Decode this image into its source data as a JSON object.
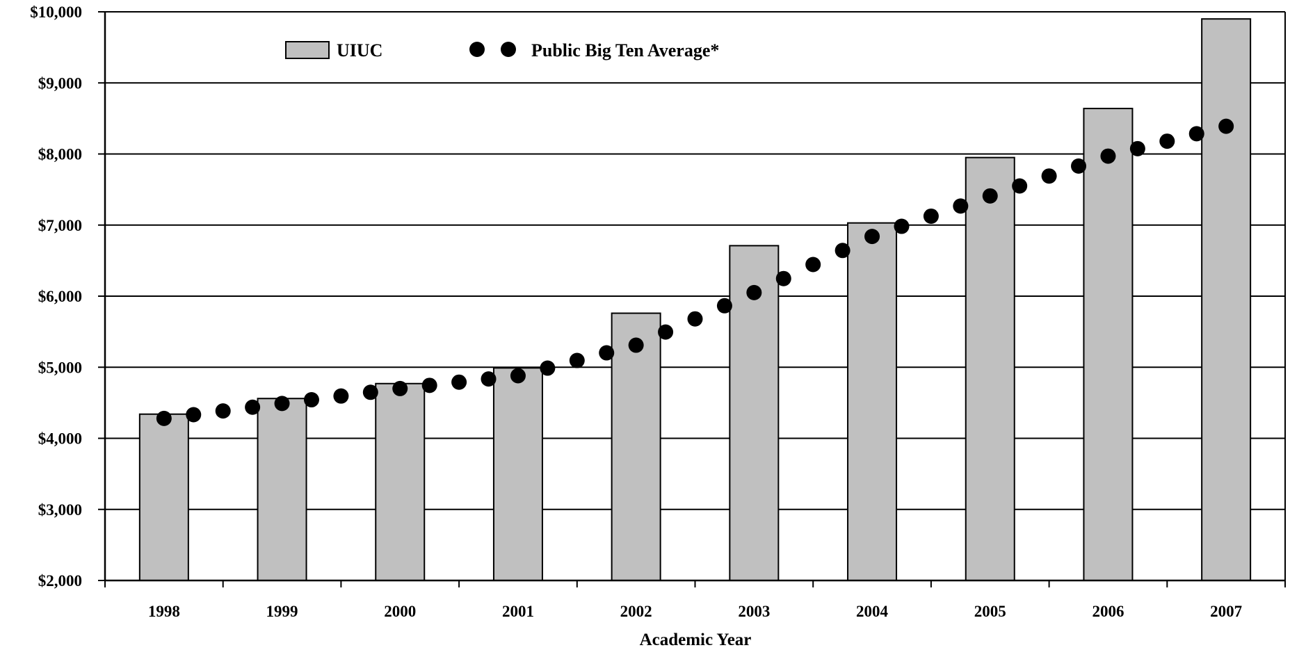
{
  "chart_data": {
    "type": "bar",
    "xlabel": "Academic Year",
    "ylabel": "",
    "ylim": [
      2000,
      10000
    ],
    "y_ticks": [
      2000,
      3000,
      4000,
      5000,
      6000,
      7000,
      8000,
      9000,
      10000
    ],
    "y_tick_labels": [
      "$2,000",
      "$3,000",
      "$4,000",
      "$5,000",
      "$6,000",
      "$7,000",
      "$8,000",
      "$9,000",
      "$10,000"
    ],
    "grid": true,
    "legend_position": "top-left",
    "categories": [
      "1998",
      "1999",
      "2000",
      "2001",
      "2002",
      "2003",
      "2004",
      "2005",
      "2006",
      "2007"
    ],
    "series": [
      {
        "name": "UIUC",
        "kind": "bar",
        "color": "#c0c0c0",
        "values": [
          4340,
          4560,
          4770,
          4990,
          5760,
          6710,
          7030,
          7950,
          8640,
          9900
        ]
      },
      {
        "name": "Public Big Ten Average*",
        "kind": "dotted-line",
        "color": "#000000",
        "values": [
          4280,
          4490,
          4700,
          4880,
          5310,
          6050,
          6840,
          7410,
          7970,
          8390
        ]
      }
    ]
  }
}
